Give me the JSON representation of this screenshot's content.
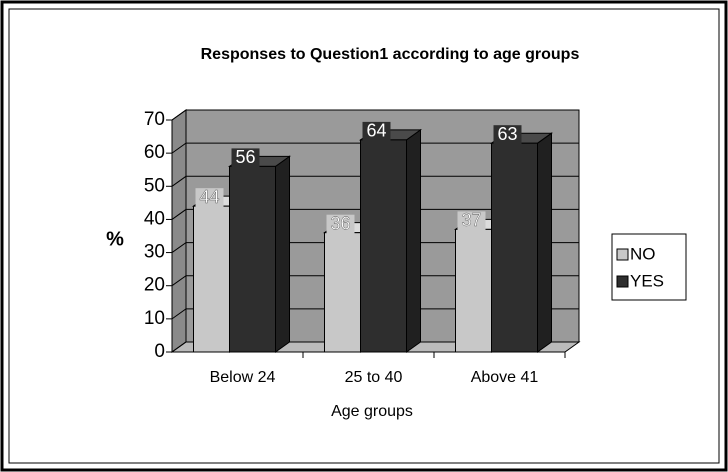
{
  "chart_data": {
    "type": "bar3d",
    "title": "Responses to Question1 according to age groups",
    "x_label": "Age groups",
    "y_label": "%",
    "categories": [
      "Below 24",
      "25 to 40",
      "Above 41"
    ],
    "series": [
      {
        "name": "NO",
        "color": "#c8c8c8",
        "values": [
          44,
          36,
          37
        ]
      },
      {
        "name": "YES",
        "color": "#2e2e2e",
        "values": [
          56,
          64,
          63
        ]
      }
    ],
    "ylim": [
      0,
      70
    ],
    "yticks": [
      0,
      10,
      20,
      30,
      40,
      50,
      60,
      70
    ],
    "grid": true,
    "legend": "right"
  }
}
